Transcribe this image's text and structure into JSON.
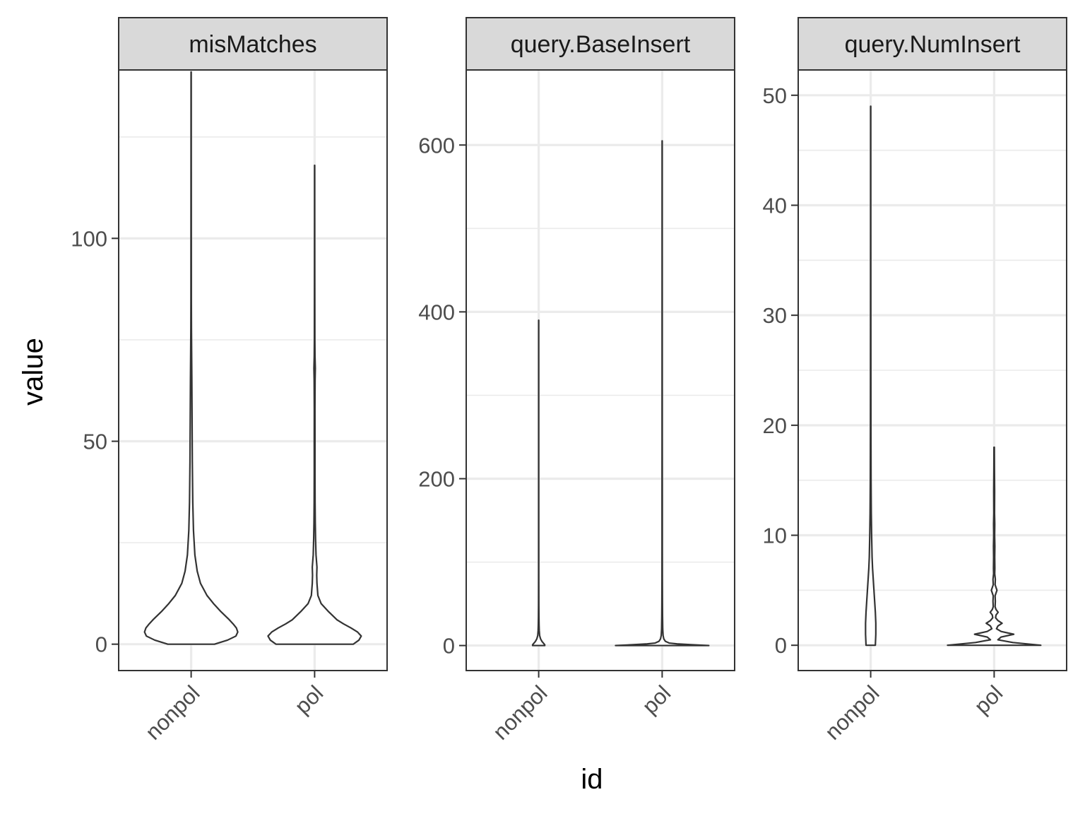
{
  "chart_data": {
    "type": "violin",
    "xlabel": "id",
    "ylabel": "value",
    "categories": [
      "nonpol",
      "pol"
    ],
    "panels": [
      {
        "name": "misMatches",
        "ylim": [
          -6.5,
          141.5
        ],
        "yticks": [
          0,
          50,
          100
        ],
        "violins": [
          {
            "category": "nonpol",
            "profile": [
              [
                0,
                0.5
              ],
              [
                1,
                0.78
              ],
              [
                2,
                0.96
              ],
              [
                3,
                1.0
              ],
              [
                4,
                0.97
              ],
              [
                5,
                0.9
              ],
              [
                6,
                0.82
              ],
              [
                8,
                0.64
              ],
              [
                10,
                0.48
              ],
              [
                12,
                0.34
              ],
              [
                15,
                0.2
              ],
              [
                18,
                0.13
              ],
              [
                22,
                0.08
              ],
              [
                28,
                0.05
              ],
              [
                35,
                0.035
              ],
              [
                45,
                0.025
              ],
              [
                55,
                0.02
              ],
              [
                65,
                0.015
              ],
              [
                72,
                0.01
              ],
              [
                78,
                0.006
              ],
              [
                85,
                0.004
              ],
              [
                100,
                0.003
              ],
              [
                120,
                0.002
              ],
              [
                135,
                0.0015
              ],
              [
                141,
                0.001
              ]
            ]
          },
          {
            "category": "pol",
            "profile": [
              [
                0,
                0.83
              ],
              [
                1,
                0.95
              ],
              [
                2,
                1.0
              ],
              [
                3,
                0.92
              ],
              [
                4,
                0.78
              ],
              [
                5,
                0.62
              ],
              [
                6,
                0.48
              ],
              [
                8,
                0.3
              ],
              [
                10,
                0.14
              ],
              [
                12,
                0.07
              ],
              [
                15,
                0.05
              ],
              [
                17,
                0.045
              ],
              [
                19,
                0.05
              ],
              [
                22,
                0.03
              ],
              [
                26,
                0.02
              ],
              [
                30,
                0.014
              ],
              [
                35,
                0.01
              ],
              [
                42,
                0.008
              ],
              [
                50,
                0.008
              ],
              [
                58,
                0.007
              ],
              [
                65,
                0.01
              ],
              [
                68,
                0.015
              ],
              [
                71,
                0.008
              ],
              [
                75,
                0.005
              ],
              [
                90,
                0.003
              ],
              [
                105,
                0.002
              ],
              [
                118,
                0.0015
              ]
            ]
          }
        ]
      },
      {
        "name": "query.BaseInsert",
        "ylim": [
          -30,
          690
        ],
        "yticks": [
          0,
          200,
          400,
          600
        ],
        "violins": [
          {
            "category": "nonpol",
            "profile": [
              [
                0,
                0.13
              ],
              [
                1,
                0.13
              ],
              [
                3,
                0.1
              ],
              [
                5,
                0.07
              ],
              [
                8,
                0.04
              ],
              [
                12,
                0.02
              ],
              [
                18,
                0.012
              ],
              [
                25,
                0.008
              ],
              [
                35,
                0.005
              ],
              [
                50,
                0.003
              ],
              [
                80,
                0.002
              ],
              [
                120,
                0.0015
              ],
              [
                200,
                0.001
              ],
              [
                300,
                0.001
              ],
              [
                390,
                0.0008
              ]
            ]
          },
          {
            "category": "pol",
            "profile": [
              [
                0,
                1.0
              ],
              [
                1,
                0.62
              ],
              [
                2,
                0.32
              ],
              [
                3,
                0.15
              ],
              [
                5,
                0.07
              ],
              [
                8,
                0.035
              ],
              [
                12,
                0.02
              ],
              [
                20,
                0.012
              ],
              [
                35,
                0.008
              ],
              [
                50,
                0.006
              ],
              [
                80,
                0.004
              ],
              [
                120,
                0.003
              ],
              [
                180,
                0.003
              ],
              [
                250,
                0.002
              ],
              [
                400,
                0.0015
              ],
              [
                520,
                0.0012
              ],
              [
                605,
                0.001
              ]
            ]
          }
        ]
      },
      {
        "name": "query.NumInsert",
        "ylim": [
          -2.3,
          52.3
        ],
        "yticks": [
          0,
          10,
          20,
          30,
          40,
          50
        ],
        "violins": [
          {
            "category": "nonpol",
            "profile": [
              [
                0,
                0.1
              ],
              [
                1,
                0.11
              ],
              [
                2,
                0.11
              ],
              [
                3,
                0.1
              ],
              [
                4,
                0.085
              ],
              [
                5,
                0.07
              ],
              [
                6,
                0.055
              ],
              [
                7,
                0.04
              ],
              [
                8,
                0.03
              ],
              [
                10,
                0.02
              ],
              [
                12,
                0.013
              ],
              [
                15,
                0.008
              ],
              [
                20,
                0.005
              ],
              [
                25,
                0.004
              ],
              [
                30,
                0.003
              ],
              [
                40,
                0.002
              ],
              [
                49,
                0.0015
              ]
            ]
          },
          {
            "category": "pol",
            "profile": [
              [
                0,
                1.0
              ],
              [
                0.25,
                0.4
              ],
              [
                0.5,
                0.08
              ],
              [
                0.75,
                0.15
              ],
              [
                1,
                0.42
              ],
              [
                1.25,
                0.15
              ],
              [
                1.5,
                0.05
              ],
              [
                1.75,
                0.08
              ],
              [
                2,
                0.17
              ],
              [
                2.25,
                0.08
              ],
              [
                2.5,
                0.03
              ],
              [
                2.75,
                0.04
              ],
              [
                3,
                0.085
              ],
              [
                3.25,
                0.04
              ],
              [
                3.5,
                0.02
              ],
              [
                4,
                0.025
              ],
              [
                4.5,
                0.02
              ],
              [
                5,
                0.06
              ],
              [
                5.5,
                0.02
              ],
              [
                6,
                0.025
              ],
              [
                6.5,
                0.012
              ],
              [
                7,
                0.015
              ],
              [
                8,
                0.012
              ],
              [
                9,
                0.015
              ],
              [
                10,
                0.01
              ],
              [
                11,
                0.013
              ],
              [
                12,
                0.008
              ],
              [
                14,
                0.01
              ],
              [
                16,
                0.006
              ],
              [
                18,
                0.004
              ]
            ]
          }
        ]
      }
    ]
  }
}
